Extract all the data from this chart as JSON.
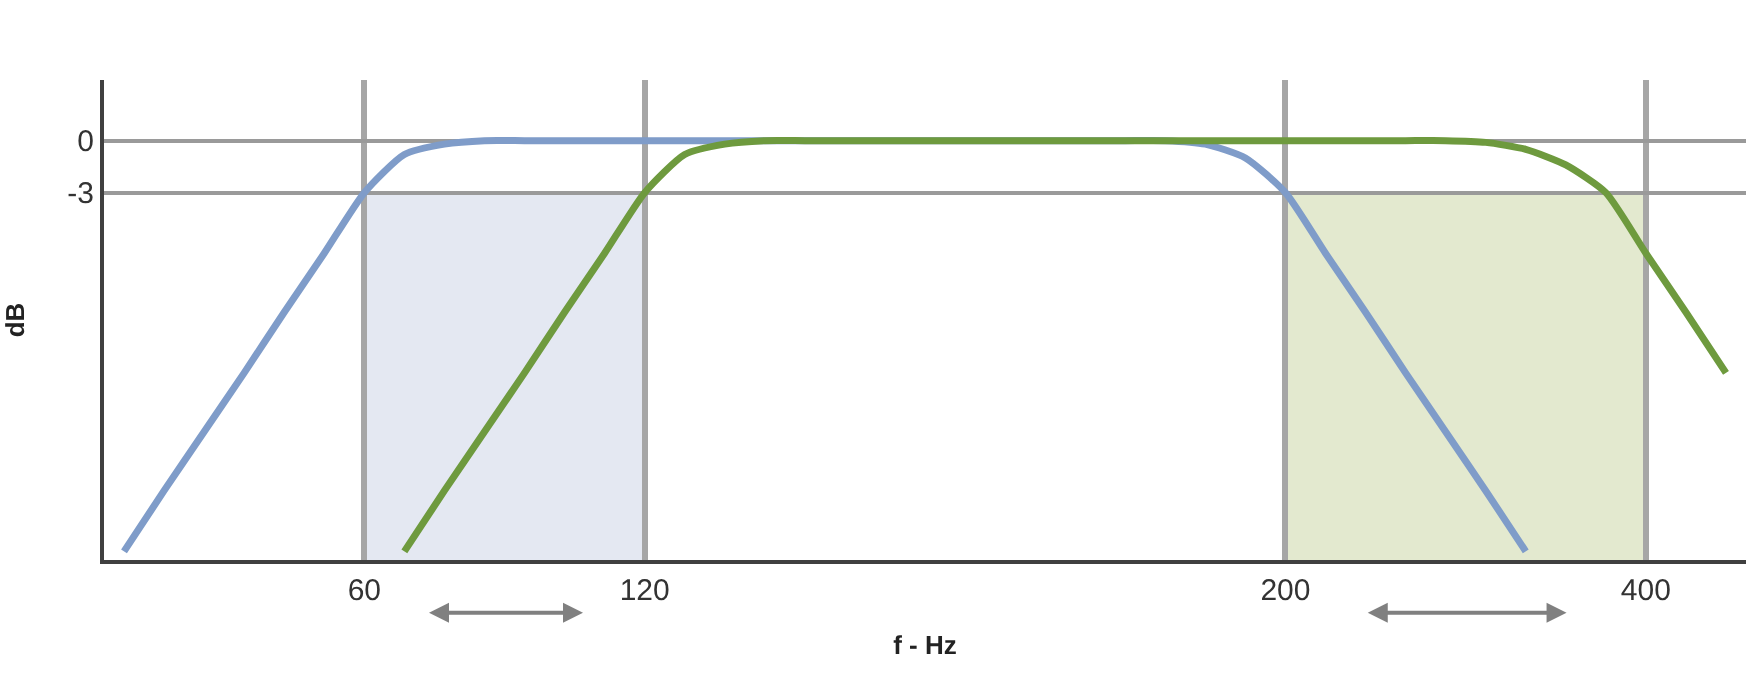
{
  "chart_data": {
    "type": "line",
    "xlabel": "f - Hz",
    "ylabel": "dB",
    "categories": [
      null,
      null,
      null,
      null,
      null,
      null,
      "60",
      null,
      null,
      null,
      null,
      null,
      null,
      "120",
      null,
      null,
      null,
      null,
      null,
      null,
      null,
      null,
      null,
      null,
      null,
      null,
      null,
      null,
      null,
      "200",
      null,
      null,
      null,
      null,
      null,
      null,
      null,
      null,
      "400",
      null,
      null
    ],
    "ylim": [
      -24.2,
      3.5
    ],
    "yticks": [
      0,
      -3
    ],
    "grid": true,
    "marker": "none",
    "line_style": "solid",
    "bands": [
      {
        "axis": "x",
        "from": "60",
        "to": "120",
        "color": "#e4e8f2"
      },
      {
        "axis": "x",
        "from": "200",
        "to": "400",
        "color": "#e3e9cf"
      }
    ],
    "series": [
      {
        "color": "#7f9cc9",
        "values": [
          -23.7,
          -20.2,
          -16.8,
          -13.4,
          -9.9,
          -6.5,
          -3,
          -0.8,
          -0.2,
          0,
          0,
          0,
          0,
          0,
          0,
          0,
          0,
          0,
          0,
          0,
          0,
          0,
          0,
          0,
          0,
          0,
          0,
          -0.2,
          -1.0,
          -3,
          -6.5,
          -9.9,
          -13.4,
          -16.8,
          -20.2,
          -23.7,
          null,
          null,
          null,
          null,
          null
        ]
      },
      {
        "color": "#6e9a3e",
        "values": [
          null,
          null,
          null,
          null,
          null,
          null,
          null,
          -23.7,
          -20.2,
          -16.8,
          -13.4,
          -9.9,
          -6.5,
          -3,
          -0.8,
          -0.2,
          0,
          0,
          0,
          0,
          0,
          0,
          0,
          0,
          0,
          0,
          0,
          0,
          0,
          0,
          0,
          0,
          0,
          0,
          -0.1,
          -0.5,
          -1.4,
          -3,
          -6.5,
          -9.9,
          -13.4
        ]
      }
    ]
  }
}
